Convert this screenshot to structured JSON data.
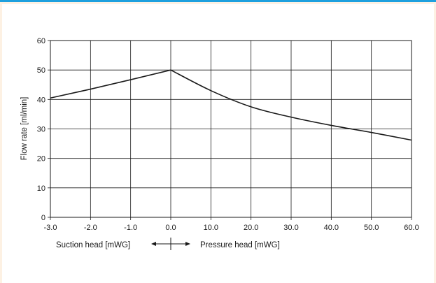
{
  "chart_data": {
    "type": "line",
    "ylabel": "Flow rate [ml/min]",
    "ylim": [
      0,
      60
    ],
    "y_ticks": [
      "0",
      "10",
      "20",
      "30",
      "40",
      "50",
      "60"
    ],
    "x_ticks": [
      "-3.0",
      "-2.0",
      "-1.0",
      "0.0",
      "10.0",
      "20.0",
      "30.0",
      "40.0",
      "50.0",
      "60.0"
    ],
    "xlabel_left": "Suction head [mWG]",
    "xlabel_right": "Pressure head [mWG]",
    "series": [
      {
        "x": [
          "-3.0",
          "-2.0",
          "-1.0",
          "0.0",
          "10.0",
          "20.0",
          "30.0",
          "40.0",
          "50.0",
          "60.0"
        ],
        "y": [
          40.5,
          43.5,
          46.7,
          50,
          43,
          37.5,
          34,
          31.2,
          28.8,
          26.2
        ]
      }
    ],
    "grid": true
  },
  "colors": {
    "frame_top": "#1ea0de",
    "frame_bg": "#fdf1e3",
    "line": "#1a1a1a",
    "grid": "#1a1a1a"
  }
}
